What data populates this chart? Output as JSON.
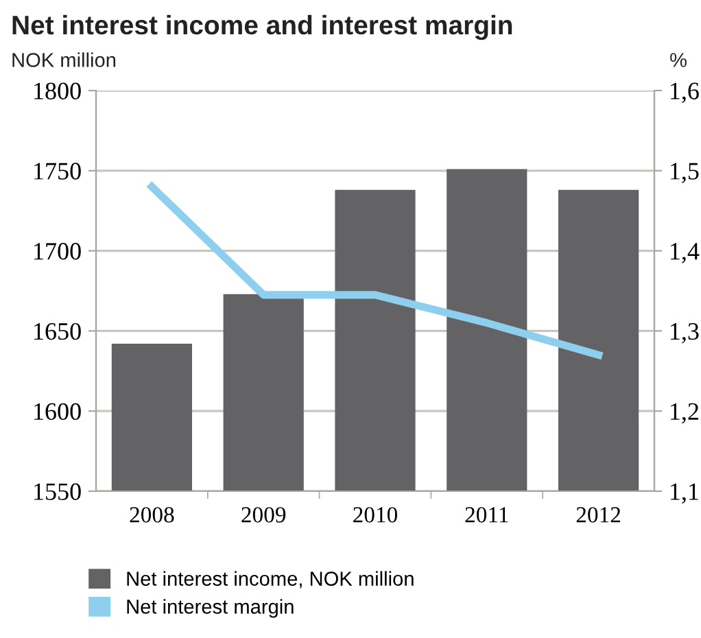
{
  "chart_data": {
    "type": "bar",
    "title": "Net interest income and interest margin",
    "ylabel": "NOK million",
    "y2label": "%",
    "categories": [
      "2008",
      "2009",
      "2010",
      "2011",
      "2012"
    ],
    "series": [
      {
        "name": "Net interest income, NOK million",
        "color": "#636365",
        "values": [
          1642,
          1673,
          1738,
          1751,
          1738
        ]
      },
      {
        "name": "Net interest margin",
        "type": "line",
        "axis": "y2",
        "color": "#8ecfee",
        "values": [
          1.48,
          1.345,
          1.345,
          1.31,
          1.27
        ]
      }
    ],
    "ylim": [
      1550,
      1800
    ],
    "yticks": [
      1550,
      1600,
      1650,
      1700,
      1750,
      1800
    ],
    "y2lim": [
      1.1,
      1.6
    ],
    "y2ticks": [
      {
        "value": 1.1,
        "label": "1,1"
      },
      {
        "value": 1.2,
        "label": "1,2"
      },
      {
        "value": 1.3,
        "label": "1,3"
      },
      {
        "value": 1.4,
        "label": "1,4"
      },
      {
        "value": 1.5,
        "label": "1,5"
      },
      {
        "value": 1.6,
        "label": "1,6"
      }
    ],
    "grid": "y",
    "legend": "bottom",
    "marker": "none",
    "line_style": "solid"
  }
}
